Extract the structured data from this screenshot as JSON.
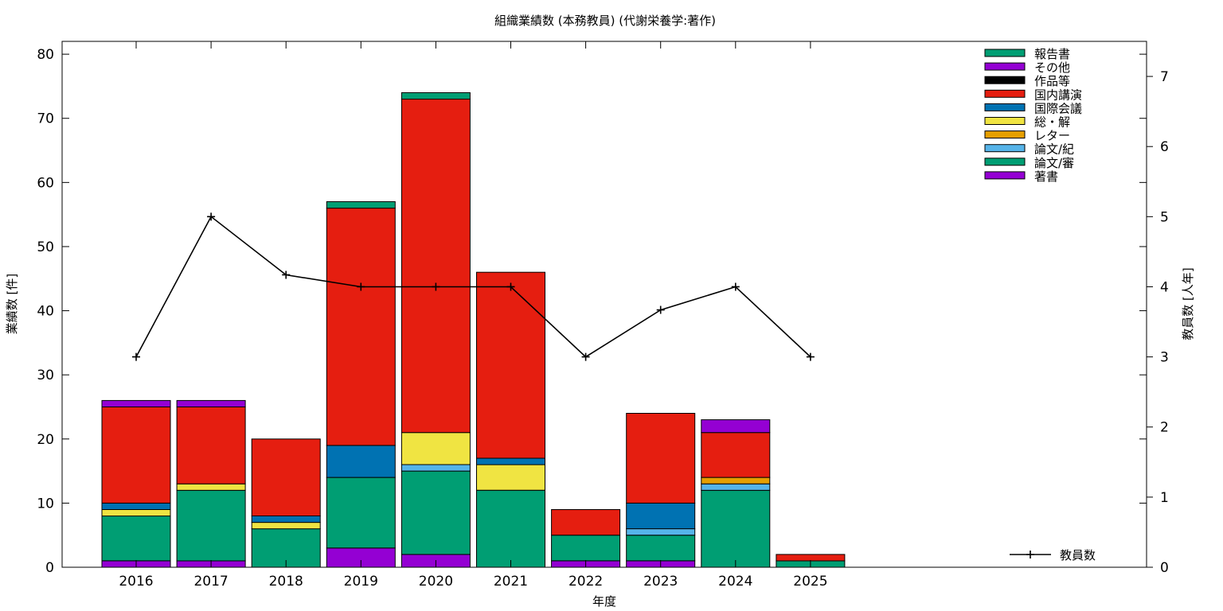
{
  "chart_data": {
    "type": "bar",
    "title": "組織業績数 (本務教員) (代謝栄養学:著作)",
    "xlabel": "年度",
    "ylabel": "業績数 [件]",
    "y2label": "教員数 [人年]",
    "categories": [
      "2016",
      "2017",
      "2018",
      "2019",
      "2020",
      "2021",
      "2022",
      "2023",
      "2024",
      "2025"
    ],
    "ylim": [
      0,
      82
    ],
    "yticks": [
      0,
      10,
      20,
      30,
      40,
      50,
      60,
      70,
      80
    ],
    "y2lim": [
      0,
      7.5
    ],
    "y2ticks": [
      0,
      1,
      2,
      3,
      4,
      5,
      6,
      7
    ],
    "grid": false,
    "legend_position": "top-right",
    "stack_order": [
      "著書",
      "論文/審",
      "論文/紀",
      "レター",
      "総・解",
      "国際会議",
      "国内講演",
      "作品等",
      "その他",
      "報告書"
    ],
    "series": [
      {
        "name": "報告書",
        "color": "#009e73",
        "values": [
          0,
          0,
          0,
          1,
          1,
          0,
          0,
          0,
          0,
          0
        ]
      },
      {
        "name": "その他",
        "color": "#9400d3",
        "values": [
          1,
          1,
          0,
          0,
          0,
          0,
          0,
          0,
          2,
          0
        ]
      },
      {
        "name": "作品等",
        "color": "#000000",
        "values": [
          0,
          0,
          0,
          0,
          0,
          0,
          0,
          0,
          0,
          0
        ]
      },
      {
        "name": "国内講演",
        "color": "#e51e10",
        "values": [
          15,
          12,
          12,
          37,
          52,
          29,
          4,
          14,
          7,
          1
        ]
      },
      {
        "name": "国際会議",
        "color": "#0072b2",
        "values": [
          1,
          0,
          1,
          5,
          0,
          1,
          0,
          4,
          0,
          0
        ]
      },
      {
        "name": "総・解",
        "color": "#f0e442",
        "values": [
          1,
          1,
          1,
          0,
          5,
          4,
          0,
          0,
          0,
          0
        ]
      },
      {
        "name": "レター",
        "color": "#e69f00",
        "values": [
          0,
          0,
          0,
          0,
          0,
          0,
          0,
          0,
          1,
          0
        ]
      },
      {
        "name": "論文/紀",
        "color": "#56b4e9",
        "values": [
          0,
          0,
          0,
          0,
          1,
          0,
          0,
          1,
          1,
          0
        ]
      },
      {
        "name": "論文/審",
        "color": "#009e73",
        "values": [
          7,
          11,
          6,
          11,
          13,
          12,
          4,
          4,
          12,
          1
        ]
      },
      {
        "name": "著書",
        "color": "#9400d3",
        "values": [
          1,
          1,
          0,
          3,
          2,
          0,
          1,
          1,
          0,
          0
        ]
      }
    ],
    "line_series": {
      "name": "教員数",
      "color": "#000000",
      "axis": "y2",
      "values": [
        3,
        5,
        4.17,
        4,
        4,
        4,
        3,
        3.67,
        4,
        3
      ]
    }
  }
}
